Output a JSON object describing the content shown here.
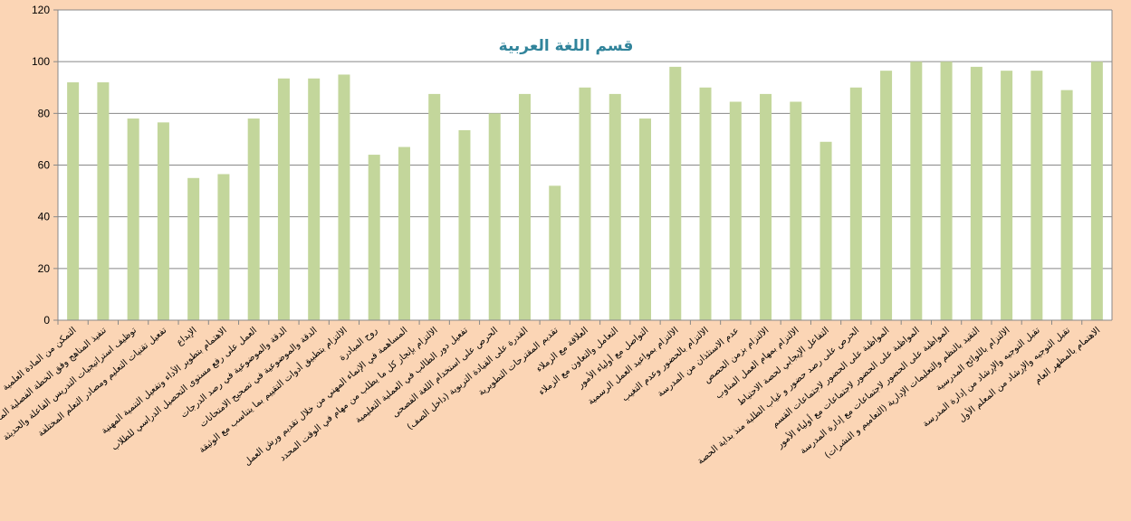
{
  "chart_data": {
    "type": "bar",
    "title": "قسم اللغة العربية",
    "xlabel": "",
    "ylabel": "",
    "ylim": [
      0,
      120
    ],
    "yticks": [
      0,
      20,
      40,
      60,
      80,
      100,
      120
    ],
    "grid": true,
    "legend": "none",
    "colors": {
      "bar": "#c3d69b",
      "plot_background": "#ffffff",
      "page_background": "#fbd5b5",
      "grid": "#888888",
      "title": "#31849b"
    },
    "categories": [
      "التمكن من المادة العلمية",
      "تنفيذ المناهج وفق الخطة الفصلية المعتمدة",
      "توظيف استراتيجيات التدريس الفاعلة والحديثة",
      "تفعيل تقنيات التعليم ومصادر التعلم المختلفة",
      "الإبداع",
      "الاهتمام بتطوير الأداء وتفعيل التنمية المهنية",
      "العمل على رفع مستوى التحصيل الدراسي للطلاب",
      "الدقة والموضوعية في رصد الدرجات",
      "الدقة والموضوعية في تصحيح الامتحانات",
      "الالتزام بتطبيق أدوات التقييم بما يتناسب مع الوثيقة",
      "روح المبادرة",
      "المساهمة في الإنماء المهني من خلال تقديم ورش العمل",
      "الالتزام بإنجاز كل ما يطلب من مهام في الوقت المحدد",
      "تفعيل دور الطالب في العملية التعليمية",
      "الحرص على استخدام اللغة الفصحى",
      "القدرة على القيادة التربوية (داخل الصف)",
      "تقديم المقترحات التطويرية",
      "العلاقة مع الزملاء",
      "التعامل والتعاون مع الزملاء",
      "التواصل مع أولياء الأمور",
      "الالتزام بمواعيد العمل الرسمية",
      "الالتزام بالحضور وعدم التغيب",
      "عدم الاستئذان من المدرسة",
      "الالتزام بزمن الحصص",
      "الالتزام بمهام العمل المناوب",
      "التفاعل الإيجابي لحصة الاحتياط",
      "الحرص على رصد حضور و غياب الطلبة منذ بداية الحصة",
      "المواظبة على الحضور لاجتماعات القسم",
      "المواظبة على الحضور لاجتماعات مع أولياء الأمور",
      "المواظبة على الحضور لاجتماعات مع إدارة المدرسة",
      "التقيد بالنظم والتعليمات الإدارية (التعاميم و النشرات)",
      "الالتزام باللوائح المدرسية",
      "تقبل التوجيه والإرشاد من إدارة المدرسة",
      "تقبل التوجيه والإرشاد من المعلم الأول",
      "الاهتمام بالمظهر العام"
    ],
    "values": [
      92,
      92,
      78,
      76.5,
      55,
      56.5,
      78,
      93.5,
      93.5,
      95,
      64,
      67,
      87.5,
      73.5,
      80,
      87.5,
      52,
      90,
      87.5,
      78,
      98,
      90,
      84.5,
      87.5,
      84.5,
      69,
      90,
      96.5,
      100,
      100,
      98,
      96.5,
      96.5,
      89,
      100
    ]
  }
}
